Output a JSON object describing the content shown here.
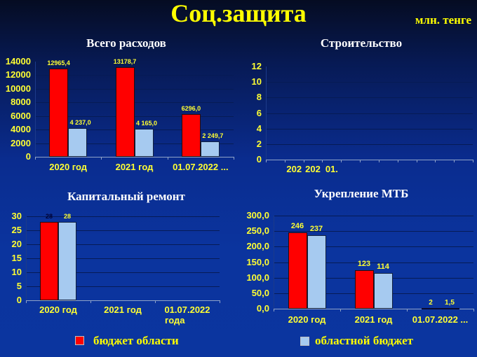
{
  "header": {
    "title": "Соц.защита",
    "units": "млн. тенге"
  },
  "legend": {
    "items": [
      {
        "label": "бюджет области",
        "color": "#ff0000"
      },
      {
        "label": "областной бюджет",
        "color": "#a6caf0"
      }
    ]
  },
  "colors": {
    "series1": "#ff0000",
    "series2": "#a6caf0",
    "text_accent": "#ffff00",
    "background": "#0b349e"
  },
  "chart_data": [
    {
      "type": "bar",
      "title": "Всего расходов",
      "categories": [
        "2020 год",
        "2021 год",
        "01.07.2022 ..."
      ],
      "series": [
        {
          "name": "бюджет области",
          "values": [
            12965.4,
            13178.7,
            6296.0
          ],
          "labels": [
            "12965,4",
            "13178,7",
            "6296,0"
          ]
        },
        {
          "name": "областной бюджет",
          "values": [
            4237.0,
            4165.0,
            2249.7
          ],
          "labels": [
            "4 237,0",
            "4 165,0",
            "2 249,7"
          ]
        }
      ],
      "yticks": [
        "14000",
        "12000",
        "10000",
        "8000",
        "6000",
        "4000",
        "2000",
        "0"
      ],
      "ylim": [
        0,
        14000
      ],
      "xlabel": "",
      "ylabel": "",
      "grid": true,
      "legend_position": "bottom"
    },
    {
      "type": "bar",
      "title": "Строительство",
      "categories": [
        "202",
        "202",
        "01."
      ],
      "series": [],
      "yticks": [
        "12",
        "10",
        "8",
        "6",
        "4",
        "2",
        "0"
      ],
      "ylim": [
        0,
        12
      ],
      "xlabel": "",
      "ylabel": "",
      "grid": true
    },
    {
      "type": "bar",
      "title": "Капитальный ремонт",
      "categories": [
        "2020 год",
        "2021 год",
        "01.07.2022 года"
      ],
      "category_lines": [
        [
          "2020 год"
        ],
        [
          "2021 год"
        ],
        [
          "01.07.2022",
          "года"
        ]
      ],
      "series": [
        {
          "name": "бюджет области",
          "values": [
            28,
            null,
            null
          ],
          "labels": [
            "28",
            "",
            ""
          ]
        },
        {
          "name": "областной бюджет",
          "values": [
            28,
            null,
            null
          ],
          "labels": [
            "28",
            "",
            ""
          ]
        }
      ],
      "yticks": [
        "30",
        "25",
        "20",
        "15",
        "10",
        "5",
        "0"
      ],
      "ylim": [
        0,
        30
      ],
      "xlabel": "",
      "ylabel": "",
      "grid": true
    },
    {
      "type": "bar",
      "title": "Укрепление МТБ",
      "categories": [
        "2020 год",
        "2021 год",
        "01.07.2022 ..."
      ],
      "series": [
        {
          "name": "бюджет области",
          "values": [
            246,
            123,
            2
          ],
          "labels": [
            "246",
            "123",
            "2"
          ]
        },
        {
          "name": "областной бюджет",
          "values": [
            237,
            114,
            1.5
          ],
          "labels": [
            "237",
            "114",
            "1,5"
          ]
        }
      ],
      "yticks": [
        "300,0",
        "250,0",
        "200,0",
        "150,0",
        "100,0",
        "50,0",
        "0,0"
      ],
      "ylim": [
        0,
        300
      ],
      "xlabel": "",
      "ylabel": "",
      "grid": true
    }
  ]
}
